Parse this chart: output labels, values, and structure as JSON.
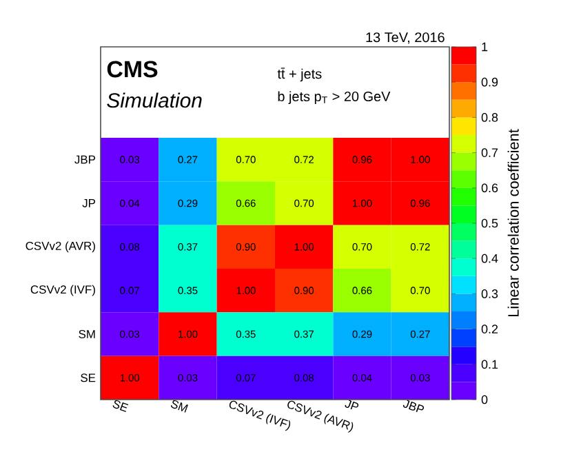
{
  "chart_data": {
    "type": "heatmap",
    "categories": [
      "SE",
      "SM",
      "CSVv2 (IVF)",
      "CSVv2 (AVR)",
      "JP",
      "JBP"
    ],
    "y_categories": [
      "JBP",
      "JP",
      "CSVv2 (AVR)",
      "CSVv2 (IVF)",
      "SM",
      "SE"
    ],
    "cells": [
      [
        0.03,
        0.27,
        0.7,
        0.72,
        0.96,
        1.0
      ],
      [
        0.04,
        0.29,
        0.66,
        0.7,
        1.0,
        0.96
      ],
      [
        0.08,
        0.37,
        0.9,
        1.0,
        0.7,
        0.72
      ],
      [
        0.07,
        0.35,
        1.0,
        0.9,
        0.66,
        0.7
      ],
      [
        0.03,
        1.0,
        0.35,
        0.37,
        0.29,
        0.27
      ],
      [
        1.0,
        0.03,
        0.07,
        0.08,
        0.04,
        0.03
      ]
    ],
    "cell_labels": [
      [
        "0.03",
        "0.27",
        "0.70",
        "0.72",
        "0.96",
        "1.00"
      ],
      [
        "0.04",
        "0.29",
        "0.66",
        "0.70",
        "1.00",
        "0.96"
      ],
      [
        "0.08",
        "0.37",
        "0.90",
        "1.00",
        "0.70",
        "0.72"
      ],
      [
        "0.07",
        "0.35",
        "1.00",
        "0.90",
        "0.66",
        "0.70"
      ],
      [
        "0.03",
        "1.00",
        "0.35",
        "0.37",
        "0.29",
        "0.27"
      ],
      [
        "1.00",
        "0.03",
        "0.07",
        "0.08",
        "0.04",
        "0.03"
      ]
    ],
    "clim": [
      0,
      1
    ],
    "cticks": [
      0,
      0.1,
      0.2,
      0.3,
      0.4,
      0.5,
      0.6,
      0.7,
      0.8,
      0.9,
      1
    ],
    "clabel": "Linear correlation coefficient",
    "annotations": [
      "CMS",
      "Simulation",
      "tt̄ + jets",
      "b jets p$_{T}$ > 20 GeV",
      "13 TeV, 2016"
    ]
  }
}
